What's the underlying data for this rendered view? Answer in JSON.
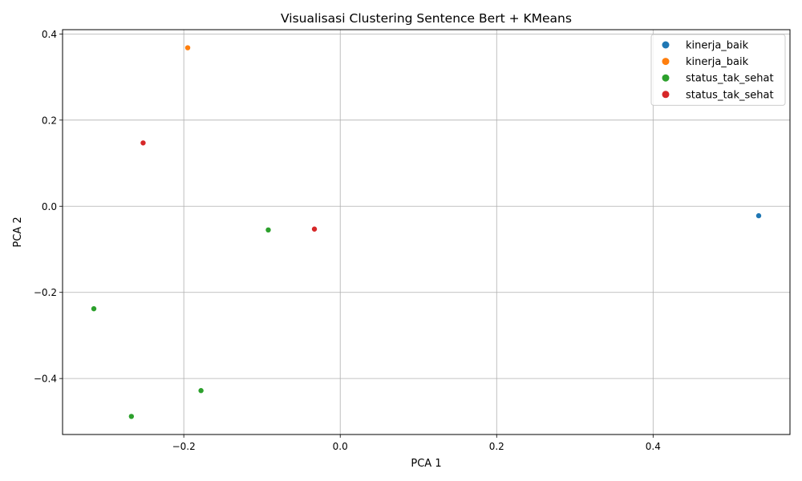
{
  "chart_data": {
    "type": "scatter",
    "title": "Visualisasi Clustering Sentence Bert + KMeans",
    "xlabel": "PCA 1",
    "ylabel": "PCA 2",
    "xlim": [
      -0.355,
      0.575
    ],
    "ylim": [
      -0.53,
      0.41
    ],
    "xticks": [
      -0.2,
      0.0,
      0.2,
      0.4
    ],
    "xtick_labels": [
      "−0.2",
      "0.0",
      "0.2",
      "0.4"
    ],
    "yticks": [
      0.4,
      0.2,
      0.0,
      -0.2,
      -0.4
    ],
    "ytick_labels": [
      "0.4",
      "0.2",
      "0.0",
      "−0.2",
      "−0.4"
    ],
    "grid": true,
    "legend_position": "top-right",
    "series": [
      {
        "name": "kinerja_baik",
        "color": "#1f77b4",
        "points": [
          {
            "x": 0.535,
            "y": -0.022
          }
        ]
      },
      {
        "name": "kinerja_baik",
        "color": "#ff7f0e",
        "points": [
          {
            "x": -0.195,
            "y": 0.368
          }
        ]
      },
      {
        "name": "status_tak_sehat",
        "color": "#2ca02c",
        "points": [
          {
            "x": -0.092,
            "y": -0.055
          },
          {
            "x": -0.315,
            "y": -0.238
          },
          {
            "x": -0.178,
            "y": -0.428
          },
          {
            "x": -0.267,
            "y": -0.488
          }
        ]
      },
      {
        "name": "status_tak_sehat",
        "color": "#d62728",
        "points": [
          {
            "x": -0.252,
            "y": 0.147
          },
          {
            "x": -0.033,
            "y": -0.053
          }
        ]
      }
    ]
  }
}
